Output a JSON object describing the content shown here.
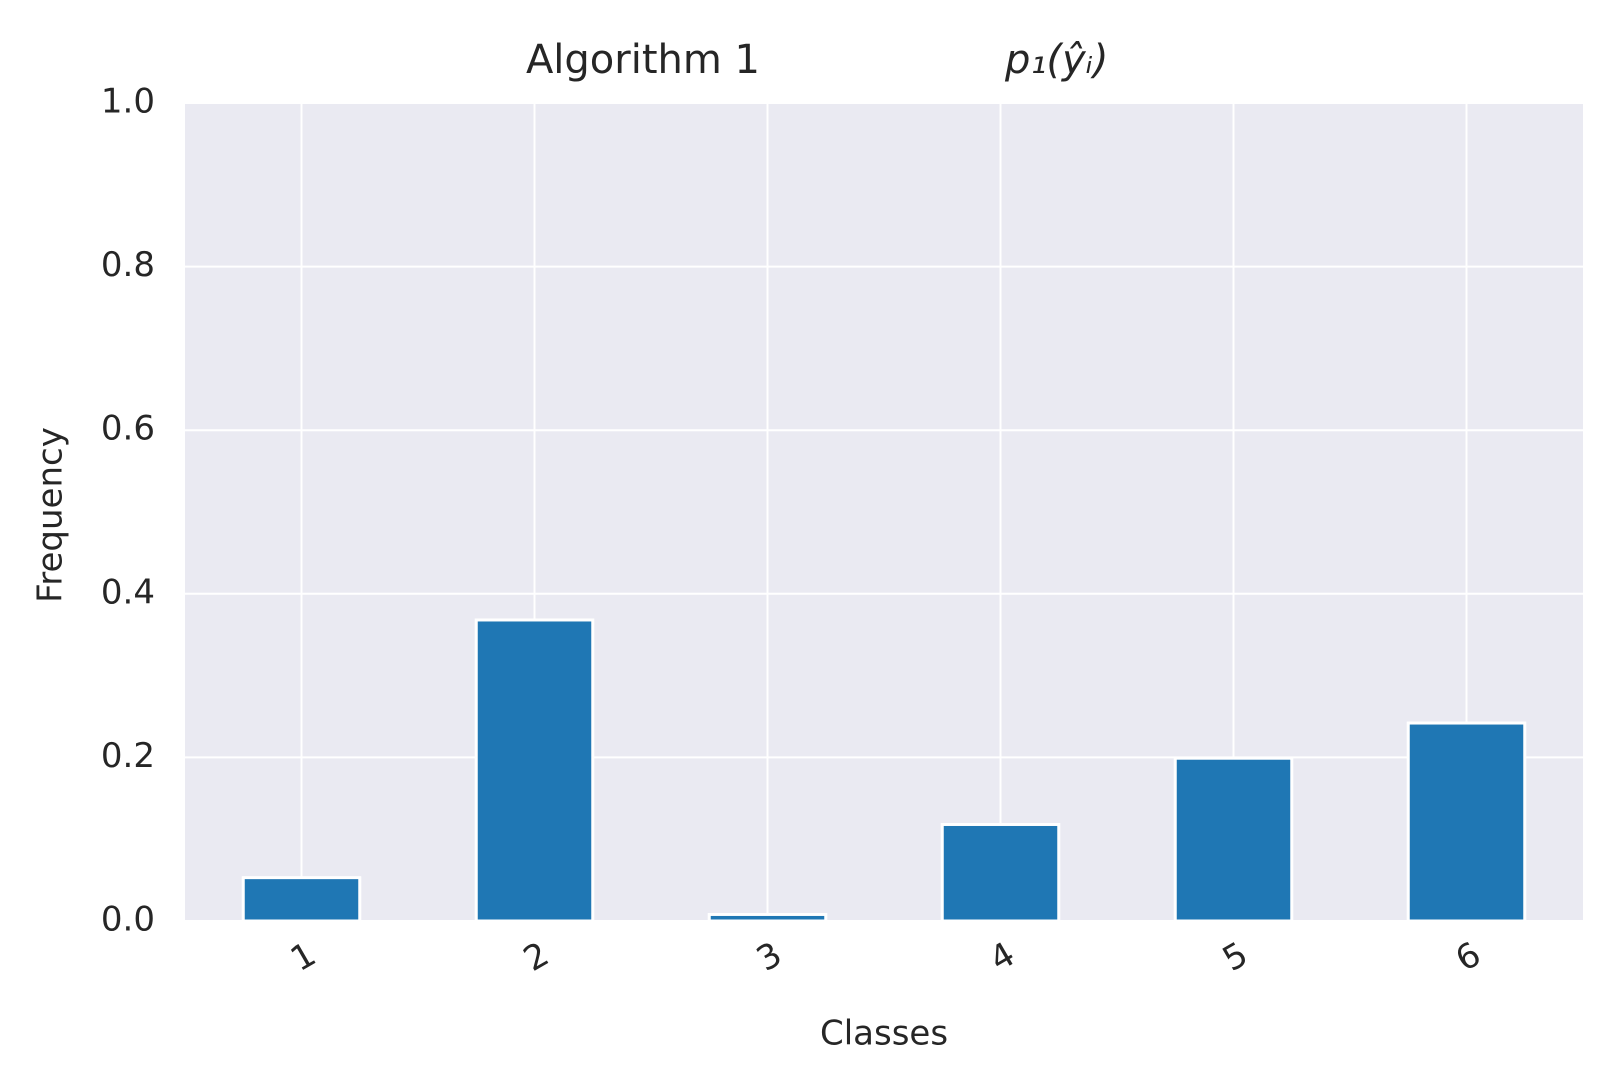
{
  "chart_data": {
    "type": "bar",
    "title": "Algorithm 1",
    "title_math": "p₁(ŷᵢ)",
    "x_label": "Classes",
    "y_label": "Frequency",
    "categories": [
      "1",
      "2",
      "3",
      "4",
      "5",
      "6"
    ],
    "values": [
      0.053,
      0.368,
      0.008,
      0.118,
      0.199,
      0.242
    ],
    "color": "#1f77b4",
    "ylim": [
      0,
      1
    ],
    "yticks": [
      {
        "value": 0,
        "label": "0.0"
      },
      {
        "value": 0.2,
        "label": "0.2"
      },
      {
        "value": 0.4,
        "label": "0.4"
      },
      {
        "value": 0.6,
        "label": "0.6"
      },
      {
        "value": 0.8,
        "label": "0.8"
      },
      {
        "value": 1,
        "label": "1.0"
      }
    ],
    "grid": true
  }
}
